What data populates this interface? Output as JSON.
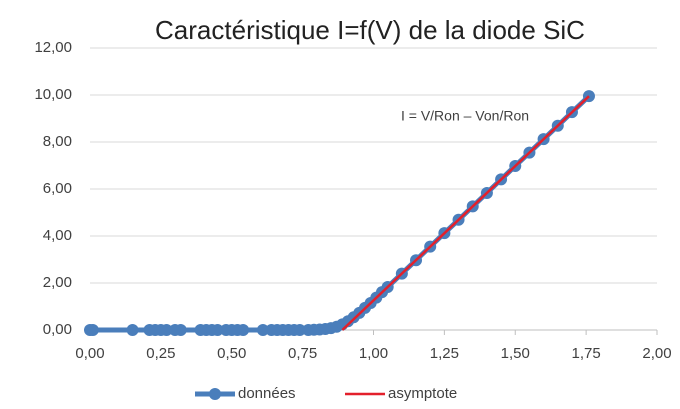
{
  "chart_data": {
    "type": "scatter",
    "title": "Caractéristique I=f(V) de la diode SiC",
    "annotation": "I = V/Ron – Von/Ron",
    "series": [
      {
        "name": "données",
        "color": "#4a7ebb",
        "x": [
          0,
          0.01,
          0.15,
          0.21,
          0.23,
          0.25,
          0.27,
          0.3,
          0.32,
          0.39,
          0.41,
          0.43,
          0.45,
          0.48,
          0.5,
          0.52,
          0.54,
          0.61,
          0.64,
          0.66,
          0.68,
          0.7,
          0.72,
          0.74,
          0.77,
          0.79,
          0.81,
          0.83,
          0.85,
          0.87,
          0.89,
          0.91,
          0.93,
          0.95,
          0.97,
          0.99,
          1.01,
          1.03,
          1.05,
          1.1,
          1.15,
          1.2,
          1.25,
          1.3,
          1.35,
          1.4,
          1.45,
          1.5,
          1.55,
          1.6,
          1.65,
          1.7,
          1.76
        ],
        "values": [
          0,
          0,
          0,
          0,
          0,
          0,
          0,
          0,
          0,
          0,
          0,
          0,
          0,
          0,
          0,
          0,
          0,
          0,
          0,
          0,
          0,
          0,
          0,
          0,
          0,
          0.01,
          0.02,
          0.04,
          0.08,
          0.14,
          0.24,
          0.37,
          0.54,
          0.73,
          0.94,
          1.15,
          1.38,
          1.61,
          1.83,
          2.4,
          2.97,
          3.55,
          4.12,
          4.69,
          5.26,
          5.83,
          6.41,
          6.98,
          7.55,
          8.12,
          8.69,
          9.27,
          9.95
        ]
      },
      {
        "name": "asymptote",
        "color": "#e3202b",
        "x": [
          0.89,
          1.76
        ],
        "values": [
          0,
          9.95
        ]
      }
    ],
    "xlim": [
      0,
      2
    ],
    "ylim": [
      0,
      12
    ],
    "xticks": [
      {
        "value": 0,
        "label": "0,00"
      },
      {
        "value": 0.25,
        "label": "0,25"
      },
      {
        "value": 0.5,
        "label": "0,50"
      },
      {
        "value": 0.75,
        "label": "0,75"
      },
      {
        "value": 1,
        "label": "1,00"
      },
      {
        "value": 1.25,
        "label": "1,25"
      },
      {
        "value": 1.5,
        "label": "1,50"
      },
      {
        "value": 1.75,
        "label": "1,75"
      },
      {
        "value": 2,
        "label": "2,00"
      }
    ],
    "yticks": [
      {
        "value": 0,
        "label": "0,00"
      },
      {
        "value": 2,
        "label": "2,00"
      },
      {
        "value": 4,
        "label": "4,00"
      },
      {
        "value": 6,
        "label": "6,00"
      },
      {
        "value": 8,
        "label": "8,00"
      },
      {
        "value": 10,
        "label": "10,00"
      },
      {
        "value": 12,
        "label": "12,00"
      }
    ],
    "grid": true,
    "legend": "bottom"
  }
}
